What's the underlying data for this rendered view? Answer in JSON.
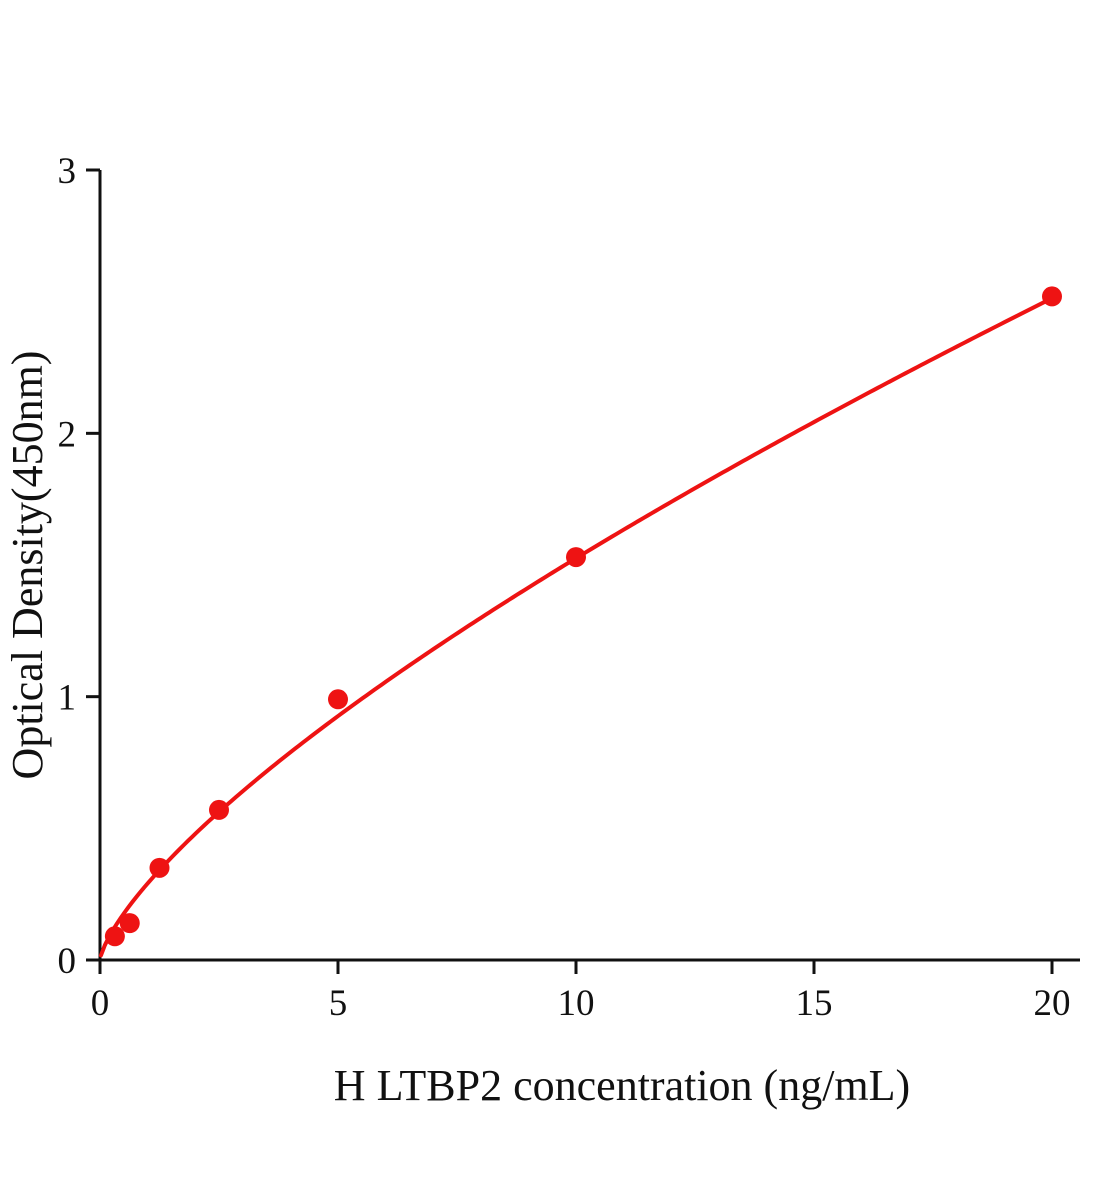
{
  "chart_data": {
    "type": "scatter",
    "title": "",
    "xlabel": "H LTBP2 concentration (ng/mL)",
    "ylabel": "Optical Density(450nm)",
    "x": [
      0.3125,
      0.625,
      1.25,
      2.5,
      5,
      10,
      20
    ],
    "y": [
      0.09,
      0.14,
      0.35,
      0.57,
      0.99,
      1.53,
      2.52
    ],
    "xlim": [
      0,
      20
    ],
    "ylim": [
      0,
      3
    ],
    "xticks": [
      0,
      5,
      10,
      15,
      20
    ],
    "yticks": [
      0,
      1,
      2,
      3
    ],
    "grid": false,
    "legend": "none",
    "fit": {
      "type": "power",
      "a": 0.2907,
      "b": 0.72,
      "x_start": 0.02,
      "x_end": 20
    },
    "colors": {
      "series": "#ee1313",
      "axis": "#111111",
      "background": "#ffffff"
    },
    "marker_radius": 10,
    "line_width": 4
  }
}
